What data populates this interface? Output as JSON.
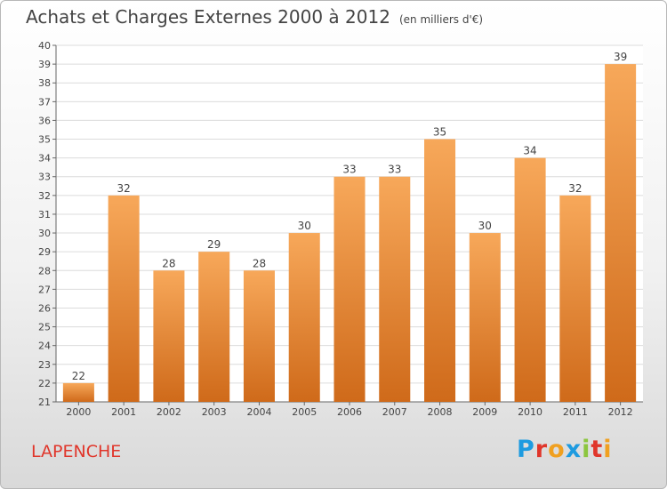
{
  "header": {
    "title": "Achats et Charges Externes 2000 à 2012",
    "unit": "(en milliers d'€)"
  },
  "place_name": "LAPENCHE",
  "logo": {
    "text": "Proxiti",
    "letters": [
      {
        "ch": "P",
        "color": "#1e9be0"
      },
      {
        "ch": "r",
        "color": "#e0362b"
      },
      {
        "ch": "o",
        "color": "#f0a020"
      },
      {
        "ch": "x",
        "color": "#1e9be0"
      },
      {
        "ch": "i",
        "color": "#8cc63f"
      },
      {
        "ch": "t",
        "color": "#e0362b"
      },
      {
        "ch": "i",
        "color": "#f0a020"
      }
    ]
  },
  "chart_data": {
    "type": "bar",
    "title": "Achats et Charges Externes 2000 à 2012",
    "subtitle": "(en milliers d'€)",
    "categories": [
      "2000",
      "2001",
      "2002",
      "2003",
      "2004",
      "2005",
      "2006",
      "2007",
      "2008",
      "2009",
      "2010",
      "2011",
      "2012"
    ],
    "values": [
      22,
      32,
      28,
      29,
      28,
      30,
      33,
      33,
      35,
      30,
      34,
      32,
      39
    ],
    "ylim": [
      21,
      40
    ],
    "ytick_step": 1,
    "grid": true,
    "bar_color_top": "#f7a85a",
    "bar_color_bottom": "#cf6a1a",
    "xlabel": "",
    "ylabel": ""
  }
}
